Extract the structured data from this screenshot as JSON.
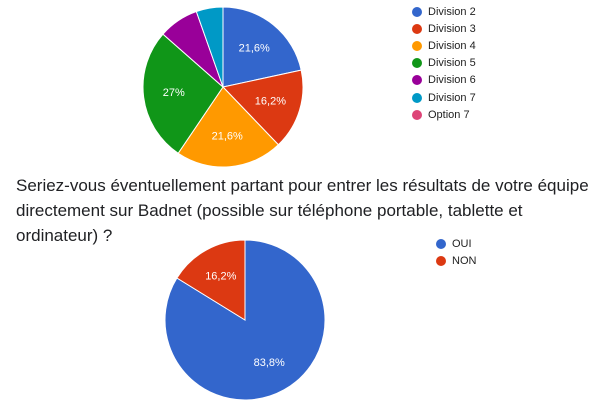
{
  "chart_data": [
    {
      "type": "pie",
      "title": "",
      "categories": [
        "Division 2",
        "Division 3",
        "Division 4",
        "Division 5",
        "Division 6",
        "Division 7",
        "Option 7"
      ],
      "values": [
        21.6,
        16.2,
        21.6,
        27,
        8.1,
        5.4,
        0
      ],
      "data_labels": [
        "21,6%",
        "16,2%",
        "21,6%",
        "27%",
        "",
        "",
        ""
      ],
      "colors": [
        "#3366cc",
        "#dc3912",
        "#ff9900",
        "#109618",
        "#990099",
        "#0099c6",
        "#dd4477"
      ],
      "legend": "right"
    },
    {
      "type": "pie",
      "title": "Seriez-vous éventuellement partant pour entrer les résultats de votre équipe directement sur Badnet (possible sur téléphone portable, tablette et ordinateur) ?",
      "categories": [
        "OUI",
        "NON"
      ],
      "values": [
        83.8,
        16.2
      ],
      "data_labels": [
        "83,8%",
        "16,2%"
      ],
      "colors": [
        "#3366cc",
        "#dc3912"
      ],
      "legend": "right"
    }
  ]
}
